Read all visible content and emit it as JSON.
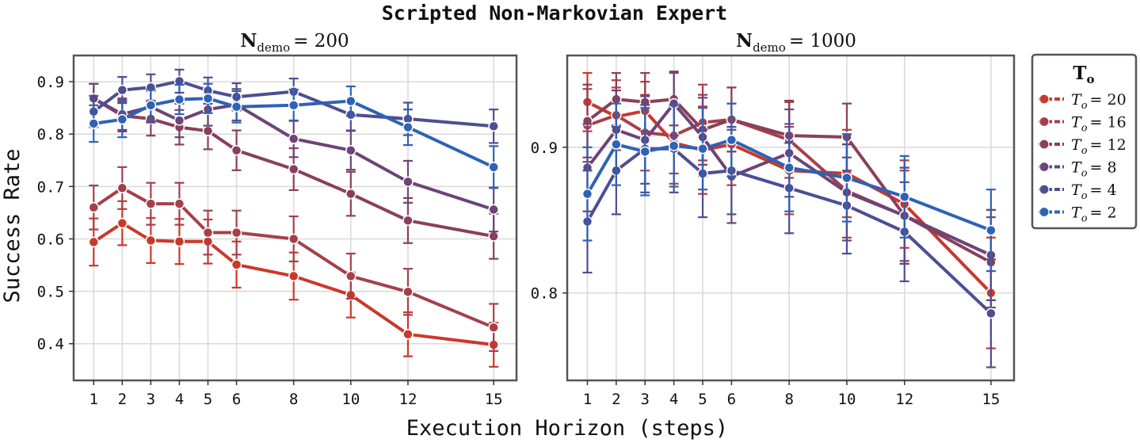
{
  "title": "Scripted Non-Markovian Expert",
  "xlabel": "Execution Horizon (steps)",
  "ylabel": "Success Rate",
  "legend": {
    "title_main": "T",
    "title_sub": "o",
    "entries": [
      {
        "sym": "T",
        "sub": "o",
        "eq": "= 20",
        "color": "#c9392b"
      },
      {
        "sym": "T",
        "sub": "o",
        "eq": "= 16",
        "color": "#a5404a"
      },
      {
        "sym": "T",
        "sub": "o",
        "eq": "= 12",
        "color": "#8a3f5b"
      },
      {
        "sym": "T",
        "sub": "o",
        "eq": "= 8",
        "color": "#6c4478"
      },
      {
        "sym": "T",
        "sub": "o",
        "eq": "= 4",
        "color": "#4d4e93"
      },
      {
        "sym": "T",
        "sub": "o",
        "eq": "= 2",
        "color": "#2e62b5"
      }
    ]
  },
  "chart_data": [
    {
      "type": "line",
      "title_main": "N",
      "title_sub": "demo",
      "title_eq": "= 200",
      "x": [
        1,
        2,
        3,
        4,
        5,
        6,
        8,
        10,
        12,
        15
      ],
      "xticks": [
        "1",
        "2",
        "3",
        "4",
        "5",
        "6",
        "8",
        "10",
        "12",
        "15"
      ],
      "xlim": [
        0.3,
        15.8
      ],
      "ylim": [
        0.33,
        0.95
      ],
      "yticks": [
        0.4,
        0.5,
        0.6,
        0.7,
        0.8,
        0.9
      ],
      "ytick_labels": [
        "0.4",
        "0.5",
        "0.6",
        "0.7",
        "0.8",
        "0.9"
      ],
      "grid": true,
      "series": [
        {
          "name": "To=20",
          "values": [
            0.594,
            0.63,
            0.597,
            0.595,
            0.595,
            0.551,
            0.529,
            0.493,
            0.418,
            0.398
          ],
          "err": [
            0.045,
            0.042,
            0.043,
            0.043,
            0.042,
            0.044,
            0.045,
            0.043,
            0.042,
            0.042
          ]
        },
        {
          "name": "To=16",
          "values": [
            0.66,
            0.697,
            0.667,
            0.667,
            0.612,
            0.612,
            0.6,
            0.529,
            0.499,
            0.431
          ],
          "err": [
            0.042,
            0.04,
            0.04,
            0.04,
            0.042,
            0.042,
            0.043,
            0.043,
            0.044,
            0.045
          ]
        },
        {
          "name": "To=12",
          "values": [
            0.868,
            0.835,
            0.829,
            0.813,
            0.806,
            0.769,
            0.733,
            0.686,
            0.635,
            0.605
          ],
          "err": [
            0.028,
            0.03,
            0.032,
            0.033,
            0.035,
            0.038,
            0.04,
            0.042,
            0.043,
            0.043
          ]
        },
        {
          "name": "To=8",
          "values": [
            0.868,
            0.838,
            0.852,
            0.826,
            0.847,
            0.856,
            0.791,
            0.769,
            0.709,
            0.656
          ],
          "err": [
            0.028,
            0.03,
            0.03,
            0.032,
            0.031,
            0.03,
            0.035,
            0.037,
            0.04,
            0.042
          ]
        },
        {
          "name": "To=4",
          "values": [
            0.843,
            0.884,
            0.889,
            0.901,
            0.883,
            0.871,
            0.881,
            0.837,
            0.829,
            0.815
          ],
          "err": [
            0.03,
            0.025,
            0.025,
            0.022,
            0.025,
            0.026,
            0.025,
            0.03,
            0.031,
            0.032
          ]
        },
        {
          "name": "To=2",
          "values": [
            0.82,
            0.828,
            0.855,
            0.866,
            0.868,
            0.852,
            0.855,
            0.863,
            0.813,
            0.737
          ],
          "err": [
            0.035,
            0.034,
            0.03,
            0.028,
            0.028,
            0.03,
            0.03,
            0.028,
            0.034,
            0.04
          ]
        }
      ]
    },
    {
      "type": "line",
      "title_main": "N",
      "title_sub": "demo",
      "title_eq": "= 1000",
      "x": [
        1,
        2,
        3,
        4,
        5,
        6,
        8,
        10,
        12,
        15
      ],
      "xticks": [
        "1",
        "2",
        "3",
        "4",
        "5",
        "6",
        "8",
        "10",
        "12",
        "15"
      ],
      "xlim": [
        0.3,
        15.8
      ],
      "ylim": [
        0.74,
        0.963
      ],
      "yticks": [
        0.8,
        0.9
      ],
      "ytick_labels": [
        "0.8",
        "0.9"
      ],
      "grid": true,
      "series": [
        {
          "name": "To=20",
          "values": [
            0.931,
            0.921,
            0.925,
            0.903,
            0.898,
            0.902,
            0.884,
            0.882,
            0.861,
            0.8
          ],
          "err": [
            0.02,
            0.02,
            0.02,
            0.028,
            0.03,
            0.028,
            0.03,
            0.03,
            0.03,
            0.038
          ]
        },
        {
          "name": "To=16",
          "values": [
            0.915,
            0.922,
            0.91,
            0.908,
            0.917,
            0.919,
            0.905,
            0.87,
            0.853,
            0.826
          ],
          "err": [
            0.025,
            0.024,
            0.026,
            0.026,
            0.026,
            0.022,
            0.026,
            0.032,
            0.033,
            0.031
          ]
        },
        {
          "name": "To=12",
          "values": [
            0.918,
            0.933,
            0.931,
            0.933,
            0.912,
            0.919,
            0.908,
            0.907,
            0.853,
            0.821
          ],
          "err": [
            0.025,
            0.018,
            0.02,
            0.018,
            0.024,
            0.022,
            0.024,
            0.023,
            0.031,
            0.031
          ]
        },
        {
          "name": "To=8",
          "values": [
            0.886,
            0.912,
            0.905,
            0.93,
            0.907,
            0.88,
            0.896,
            0.869,
            0.853,
            0.826
          ],
          "err": [
            0.03,
            0.027,
            0.03,
            0.022,
            0.027,
            0.032,
            0.03,
            0.033,
            0.033,
            0.031
          ]
        },
        {
          "name": "To=4",
          "values": [
            0.849,
            0.884,
            0.899,
            0.899,
            0.882,
            0.884,
            0.872,
            0.86,
            0.842,
            0.786
          ],
          "err": [
            0.035,
            0.03,
            0.03,
            0.03,
            0.03,
            0.03,
            0.031,
            0.033,
            0.034,
            0.037
          ]
        },
        {
          "name": "To=2",
          "values": [
            0.868,
            0.902,
            0.897,
            0.901,
            0.899,
            0.905,
            0.886,
            0.879,
            0.866,
            0.843
          ],
          "err": [
            0.032,
            0.028,
            0.03,
            0.028,
            0.028,
            0.025,
            0.03,
            0.03,
            0.028,
            0.028
          ]
        }
      ]
    }
  ]
}
